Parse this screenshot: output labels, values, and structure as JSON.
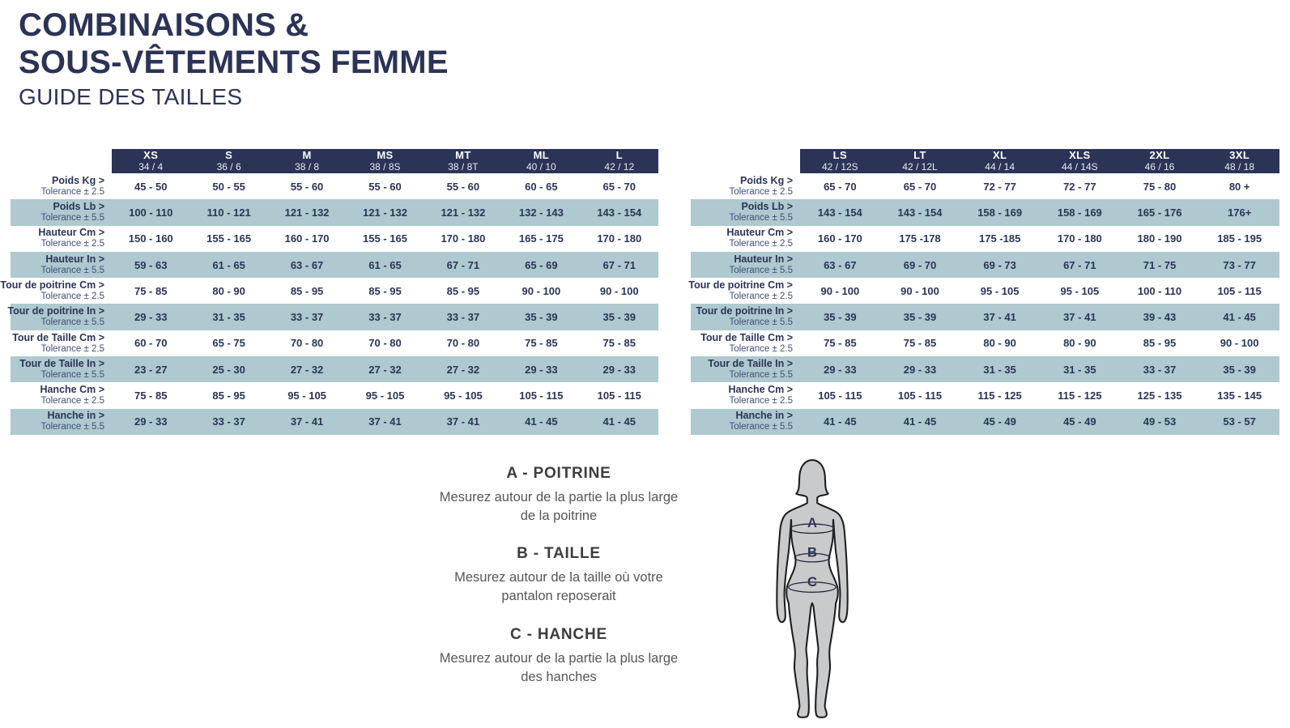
{
  "page": {
    "title_line1": "COMBINAISONS &",
    "title_line2": "SOUS-VÊTEMENTS FEMME",
    "subtitle": "GUIDE DES TAILLES"
  },
  "colors": {
    "navy": "#2b3457",
    "shaded_row": "#aec9cf",
    "header_text": "#ffffff",
    "tolerance_text": "#42507a",
    "instruction_heading": "#3d3d3d",
    "instruction_body": "#565656",
    "figure_fill": "#c9cacc",
    "figure_outline": "#1e1e1e"
  },
  "left_table": {
    "columns": [
      {
        "code": "XS",
        "num": "34 / 4"
      },
      {
        "code": "S",
        "num": "36 / 6"
      },
      {
        "code": "M",
        "num": "38 / 8"
      },
      {
        "code": "MS",
        "num": "38 / 8S"
      },
      {
        "code": "MT",
        "num": "38 / 8T"
      },
      {
        "code": "ML",
        "num": "40 / 10"
      },
      {
        "code": "L",
        "num": "42 / 12"
      }
    ],
    "rows": [
      {
        "label": "Poids Kg >",
        "tolerance": "Tolerance ± 2.5",
        "values": [
          "45 - 50",
          "50 - 55",
          "55 - 60",
          "55 - 60",
          "55 - 60",
          "60 - 65",
          "65 - 70"
        ]
      },
      {
        "label": "Poids Lb >",
        "tolerance": "Tolerance ± 5.5",
        "values": [
          "100 - 110",
          "110 - 121",
          "121 - 132",
          "121 - 132",
          "121 - 132",
          "132 - 143",
          "143 - 154"
        ]
      },
      {
        "label": "Hauteur Cm >",
        "tolerance": "Tolerance ± 2.5",
        "values": [
          "150 - 160",
          "155 - 165",
          "160 - 170",
          "155 - 165",
          "170 - 180",
          "165 - 175",
          "170 - 180"
        ]
      },
      {
        "label": "Hauteur In >",
        "tolerance": "Tolerance ± 5.5",
        "values": [
          "59 - 63",
          "61 - 65",
          "63 - 67",
          "61 - 65",
          "67 - 71",
          "65 - 69",
          "67 - 71"
        ]
      },
      {
        "label": "Tour de poitrine Cm >",
        "tolerance": "Tolerance ± 2.5",
        "values": [
          "75 - 85",
          "80 - 90",
          "85 - 95",
          "85 - 95",
          "85 - 95",
          "90 - 100",
          "90 - 100"
        ]
      },
      {
        "label": "Tour de poitrine In >",
        "tolerance": "Tolerance ± 5.5",
        "values": [
          "29 - 33",
          "31 - 35",
          "33 - 37",
          "33 - 37",
          "33 - 37",
          "35 - 39",
          "35 - 39"
        ]
      },
      {
        "label": "Tour de Taille Cm >",
        "tolerance": "Tolerance ± 2.5",
        "values": [
          "60 - 70",
          "65 - 75",
          "70 - 80",
          "70 - 80",
          "70 - 80",
          "75 - 85",
          "75 - 85"
        ]
      },
      {
        "label": "Tour de Taille In >",
        "tolerance": "Tolerance ± 5.5",
        "values": [
          "23 - 27",
          "25 - 30",
          "27 - 32",
          "27 - 32",
          "27 - 32",
          "29 - 33",
          "29 - 33"
        ]
      },
      {
        "label": "Hanche Cm >",
        "tolerance": "Tolerance ± 2.5",
        "values": [
          "75 - 85",
          "85 - 95",
          "95 - 105",
          "95 - 105",
          "95 - 105",
          "105 - 115",
          "105 - 115"
        ]
      },
      {
        "label": "Hanche in >",
        "tolerance": "Tolerance ± 5.5",
        "values": [
          "29 - 33",
          "33 - 37",
          "37 - 41",
          "37 - 41",
          "37 - 41",
          "41 - 45",
          "41 - 45"
        ]
      }
    ]
  },
  "right_table": {
    "columns": [
      {
        "code": "LS",
        "num": "42 / 12S"
      },
      {
        "code": "LT",
        "num": "42 / 12L"
      },
      {
        "code": "XL",
        "num": "44 / 14"
      },
      {
        "code": "XLS",
        "num": "44 / 14S"
      },
      {
        "code": "2XL",
        "num": "46 / 16"
      },
      {
        "code": "3XL",
        "num": "48 / 18"
      }
    ],
    "rows": [
      {
        "label": "Poids Kg >",
        "tolerance": "Tolerance ± 2.5",
        "values": [
          "65 - 70",
          "65 - 70",
          "72 - 77",
          "72 - 77",
          "75 - 80",
          "80 +"
        ]
      },
      {
        "label": "Poids Lb >",
        "tolerance": "Tolerance ± 5.5",
        "values": [
          "143 - 154",
          "143 - 154",
          "158 - 169",
          "158 - 169",
          "165 - 176",
          "176+"
        ]
      },
      {
        "label": "Hauteur Cm >",
        "tolerance": "Tolerance ± 2.5",
        "values": [
          "160 - 170",
          "175 -178",
          "175 -185",
          "170 - 180",
          "180 - 190",
          "185 - 195"
        ]
      },
      {
        "label": "Hauteur In >",
        "tolerance": "Tolerance ± 5.5",
        "values": [
          "63 - 67",
          "69 - 70",
          "69 - 73",
          "67 - 71",
          "71 - 75",
          "73 - 77"
        ]
      },
      {
        "label": "Tour de poitrine Cm >",
        "tolerance": "Tolerance ± 2.5",
        "values": [
          "90 - 100",
          "90 - 100",
          "95 - 105",
          "95 - 105",
          "100 - 110",
          "105 - 115"
        ]
      },
      {
        "label": "Tour de poitrine In >",
        "tolerance": "Tolerance ± 5.5",
        "values": [
          "35 - 39",
          "35 - 39",
          "37 - 41",
          "37 - 41",
          "39 - 43",
          "41 - 45"
        ]
      },
      {
        "label": "Tour de Taille Cm >",
        "tolerance": "Tolerance ± 2.5",
        "values": [
          "75 - 85",
          "75 - 85",
          "80 - 90",
          "80 - 90",
          "85 - 95",
          "90 - 100"
        ]
      },
      {
        "label": "Tour de Taille In >",
        "tolerance": "Tolerance ± 5.5",
        "values": [
          "29 - 33",
          "29 - 33",
          "31 - 35",
          "31 - 35",
          "33 - 37",
          "35 - 39"
        ]
      },
      {
        "label": "Hanche Cm >",
        "tolerance": "Tolerance ± 2.5",
        "values": [
          "105 - 115",
          "105 - 115",
          "115 - 125",
          "115 - 125",
          "125 - 135",
          "135 - 145"
        ]
      },
      {
        "label": "Hanche in >",
        "tolerance": "Tolerance ± 5.5",
        "values": [
          "41 - 45",
          "41 - 45",
          "45 - 49",
          "45 - 49",
          "49 - 53",
          "53 - 57"
        ]
      }
    ]
  },
  "instructions": [
    {
      "heading": "A - POITRINE",
      "body": "Mesurez autour de la partie la plus large de la poitrine"
    },
    {
      "heading": "B - TAILLE",
      "body": "Mesurez autour de la taille où votre pantalon reposerait"
    },
    {
      "heading": "C - HANCHE",
      "body": "Mesurez autour de la partie la plus large des hanches"
    }
  ],
  "figure": {
    "labels": [
      "A",
      "B",
      "C"
    ]
  }
}
